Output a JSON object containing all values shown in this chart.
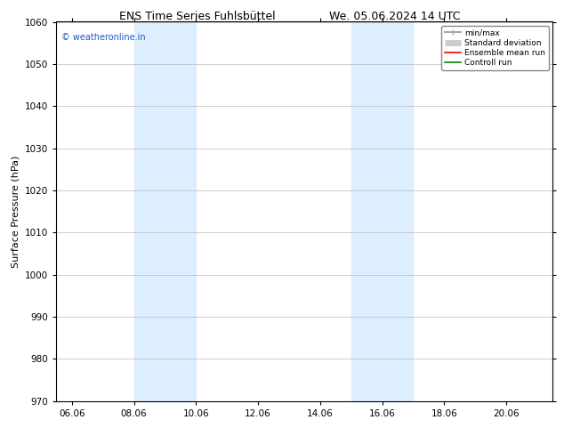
{
  "title_left": "ENS Time Series Fuhlsbüttel",
  "title_right": "We. 05.06.2024 14 UTC",
  "ylabel": "Surface Pressure (hPa)",
  "ylim": [
    970,
    1060
  ],
  "yticks": [
    970,
    980,
    990,
    1000,
    1010,
    1020,
    1030,
    1040,
    1050,
    1060
  ],
  "xlim_start": 5.5,
  "xlim_end": 21.5,
  "xtick_labels": [
    "06.06",
    "08.06",
    "10.06",
    "12.06",
    "14.06",
    "16.06",
    "18.06",
    "20.06"
  ],
  "xtick_positions": [
    6.0,
    8.0,
    10.0,
    12.0,
    14.0,
    16.0,
    18.0,
    20.0
  ],
  "shaded_bands": [
    {
      "x_start": 8.0,
      "x_end": 10.0,
      "color": "#ddeeff"
    },
    {
      "x_start": 15.0,
      "x_end": 17.0,
      "color": "#ddeeff"
    }
  ],
  "watermark_text": "© weatheronline.in",
  "watermark_color": "#2255cc",
  "legend_items": [
    {
      "label": "min/max",
      "color": "#aaaaaa",
      "lw": 1.5
    },
    {
      "label": "Standard deviation",
      "color": "#cccccc",
      "lw": 6
    },
    {
      "label": "Ensemble mean run",
      "color": "#ff0000",
      "lw": 1.5
    },
    {
      "label": "Controll run",
      "color": "#008800",
      "lw": 1.5
    }
  ],
  "bg_color": "#ffffff",
  "plot_bg_color": "#ffffff",
  "grid_color": "#bbbbbb",
  "title_fontsize": 9,
  "tick_fontsize": 7.5,
  "ylabel_fontsize": 8,
  "watermark_fontsize": 7
}
